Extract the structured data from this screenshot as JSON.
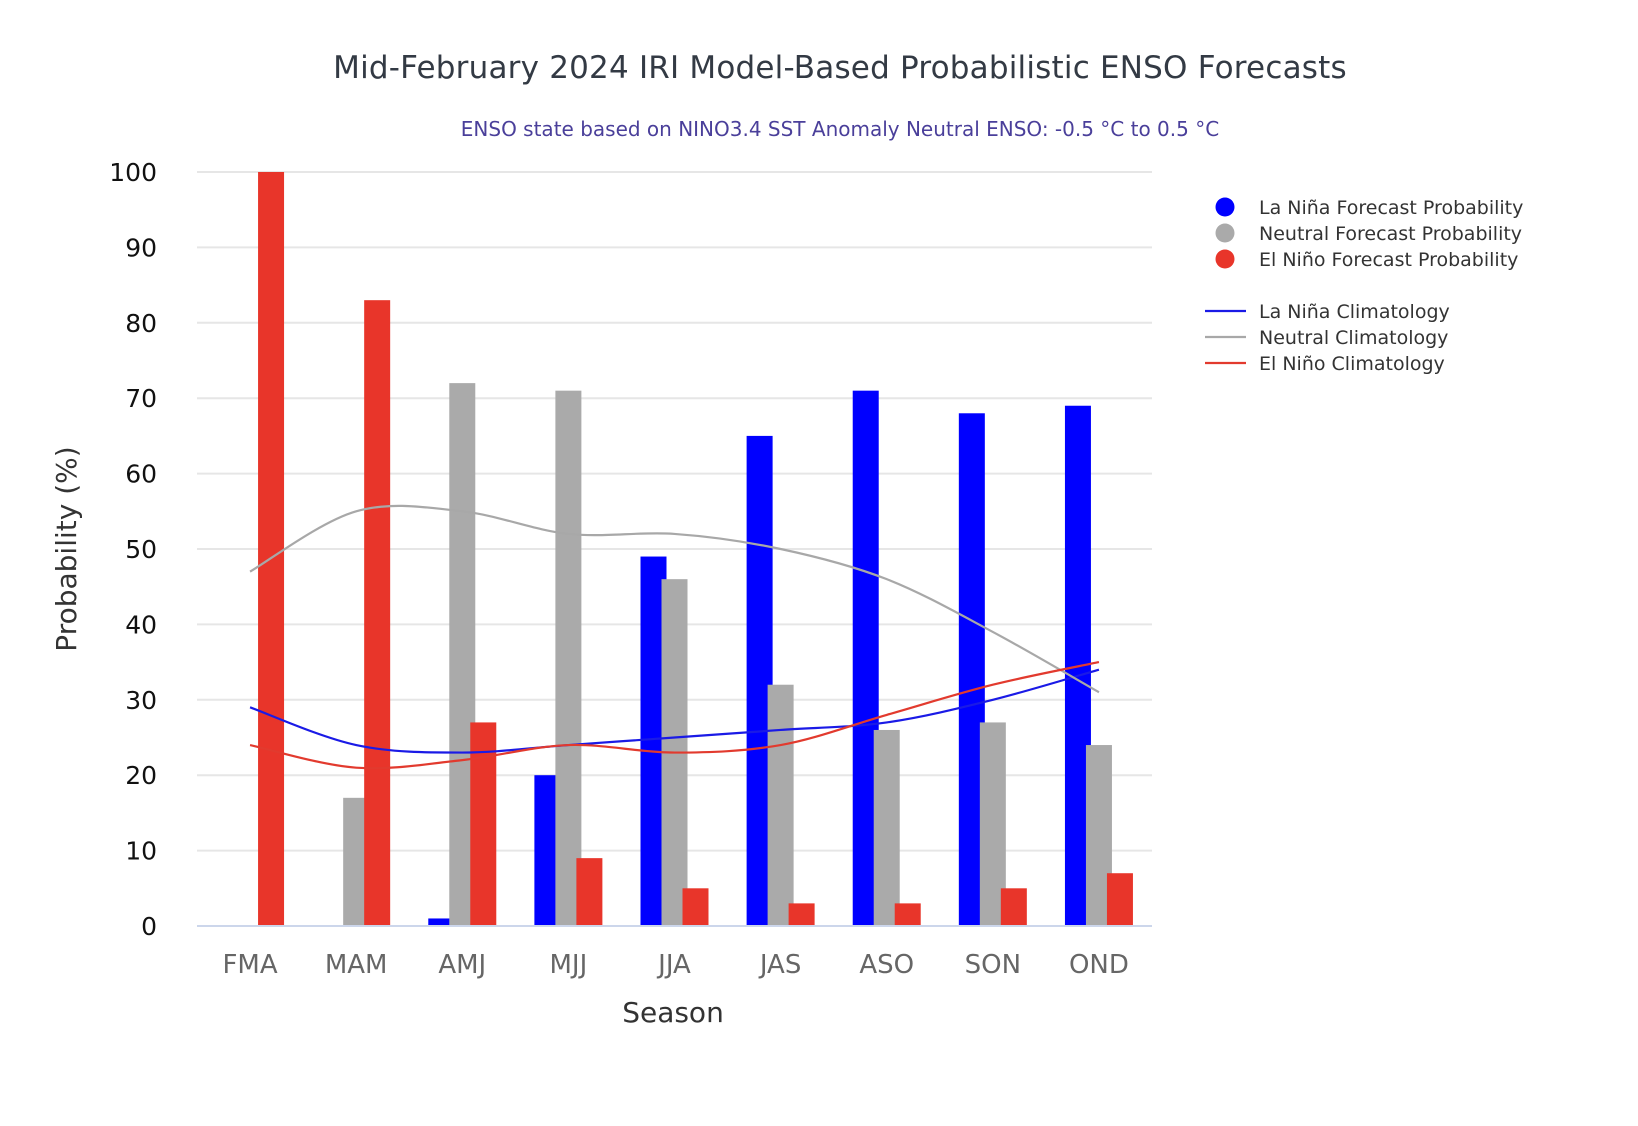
{
  "chart_data": {
    "type": "bar",
    "title": "Mid-February 2024 IRI Model-Based Probabilistic ENSO Forecasts",
    "subtitle": "ENSO state based on NINO3.4 SST Anomaly Neutral ENSO: -0.5 °C to 0.5 °C",
    "xlabel": "Season",
    "ylabel": "Probability (%)",
    "ylim": [
      0,
      100
    ],
    "yticks": [
      0,
      10,
      20,
      30,
      40,
      50,
      60,
      70,
      80,
      90,
      100
    ],
    "categories": [
      "FMA",
      "MAM",
      "AMJ",
      "MJJ",
      "JJA",
      "JAS",
      "ASO",
      "SON",
      "OND"
    ],
    "grid": true,
    "legend_position": "right",
    "series": [
      {
        "name": "La Niña Forecast Probability",
        "kind": "bar",
        "color": "#0000ff",
        "values": [
          0,
          0,
          1,
          20,
          49,
          65,
          71,
          68,
          69
        ]
      },
      {
        "name": "Neutral Forecast Probability",
        "kind": "bar",
        "color": "#aaaaaa",
        "values": [
          0,
          17,
          72,
          71,
          46,
          32,
          26,
          27,
          24
        ]
      },
      {
        "name": "El Niño Forecast Probability",
        "kind": "bar",
        "color": "#e8352a",
        "values": [
          100,
          83,
          27,
          9,
          5,
          3,
          3,
          5,
          7
        ]
      }
    ],
    "climatology": [
      {
        "name": "La Niña Climatology",
        "kind": "line",
        "color": "#1a1ae6",
        "values": [
          29,
          24,
          23,
          24,
          25,
          26,
          27,
          30,
          34
        ]
      },
      {
        "name": "Neutral Climatology",
        "kind": "line",
        "color": "#a8a8a8",
        "values": [
          47,
          55,
          55,
          52,
          52,
          50,
          46,
          39,
          31
        ]
      },
      {
        "name": "El Niño Climatology",
        "kind": "line",
        "color": "#e23a2e",
        "values": [
          24,
          21,
          22,
          24,
          23,
          24,
          28,
          32,
          35
        ]
      }
    ]
  }
}
